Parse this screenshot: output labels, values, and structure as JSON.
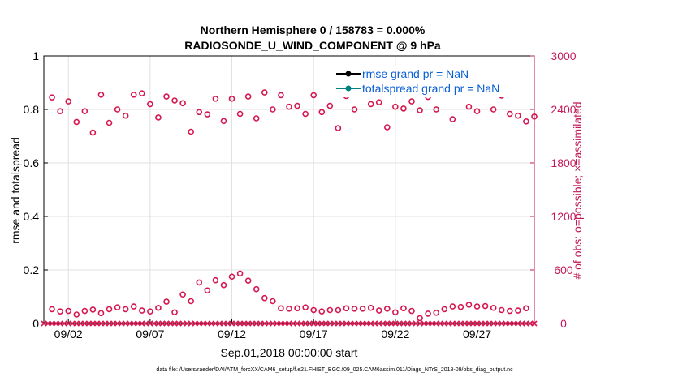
{
  "chart_data": {
    "type": "scatter",
    "title": "Northern Hemisphere 0 / 158783 = 0.000%",
    "subtitle": "RADIOSONDE_U_WIND_COMPONENT @ 9 hPa",
    "xlabel": "Sep.01,2018 00:00:00 start",
    "ylabel": "rmse and totalspread",
    "ylabel_right": "# of obs: o=possible; ×=assimilated",
    "footer": "data file: /Users/raeder/DAI/ATM_forcXX/CAM6_setup/f.e21.FHIST_BGC.f09_025.CAM6assim.011/Diags_NTrS_2018-09/obs_diag_output.nc",
    "xlim": [
      0.5,
      30.5
    ],
    "ylim": [
      0,
      1
    ],
    "ylim_right": [
      0,
      3000
    ],
    "x_ticks": [
      {
        "x": 2,
        "label": "09/02"
      },
      {
        "x": 7,
        "label": "09/07"
      },
      {
        "x": 12,
        "label": "09/12"
      },
      {
        "x": 17,
        "label": "09/17"
      },
      {
        "x": 22,
        "label": "09/22"
      },
      {
        "x": 27,
        "label": "09/27"
      }
    ],
    "y_ticks_left": [
      "0",
      "0.2",
      "0.4",
      "0.6",
      "0.8",
      "1"
    ],
    "y_ticks_right": [
      "0",
      "600",
      "1200",
      "1800",
      "2400",
      "3000"
    ],
    "grid": true,
    "legend_position": "top-right",
    "colors": {
      "obs_markers": "#d6174f",
      "right_axis": "#c41a5a",
      "rmse": "#000000",
      "totalspread": "#008080",
      "legend_text": "#0a5fd6",
      "grid": "#e0e0e0"
    },
    "series": [
      {
        "name": "rmse grand pr = NaN",
        "values": []
      },
      {
        "name": "totalspread grand pr = NaN",
        "values": []
      }
    ],
    "obs_possible": {
      "x": [
        1,
        1.5,
        2,
        2.5,
        3,
        3.5,
        4,
        4.5,
        5,
        5.5,
        6,
        6.5,
        7,
        7.5,
        8,
        8.5,
        9,
        9.5,
        10,
        10.5,
        11,
        11.5,
        12,
        12.5,
        13,
        13.5,
        14,
        14.5,
        15,
        15.5,
        16,
        16.5,
        17,
        17.5,
        18,
        18.5,
        19,
        19.5,
        20,
        20.5,
        21,
        21.5,
        22,
        22.5,
        23,
        23.5,
        24,
        24.5,
        25,
        25.5,
        26,
        26.5,
        27,
        27.5,
        28,
        28.5,
        29,
        29.5,
        30,
        30.5
      ],
      "values": [
        2535,
        2380,
        2490,
        2260,
        2380,
        2140,
        2565,
        2250,
        2400,
        2330,
        2565,
        2580,
        2460,
        2310,
        2545,
        2500,
        2470,
        2150,
        2370,
        2345,
        2520,
        2270,
        2520,
        2350,
        2545,
        2300,
        2590,
        2400,
        2560,
        2430,
        2440,
        2350,
        2560,
        2370,
        2440,
        2190,
        2550,
        2400,
        2580,
        2460,
        2480,
        2200,
        2430,
        2410,
        2490,
        2390,
        2540,
        2400,
        2710,
        2290,
        2720,
        2430,
        2380,
        2750,
        2400,
        2555,
        2350,
        2330,
        2265,
        2320
      ]
    },
    "obs_daily": {
      "x": [
        1,
        2,
        3,
        4,
        5,
        6,
        7,
        8,
        9,
        10,
        11,
        12,
        13,
        14,
        15,
        16,
        17,
        18,
        19,
        20,
        21,
        22,
        23,
        24,
        25,
        26,
        27,
        28,
        29,
        30
      ],
      "values": [
        160,
        140,
        140,
        115,
        180,
        190,
        135,
        245,
        325,
        460,
        485,
        525,
        480,
        285,
        170,
        170,
        150,
        150,
        170,
        165,
        145,
        125,
        140,
        110,
        160,
        185,
        190,
        175,
        140,
        170
      ]
    },
    "obs_daily_half": {
      "x": [
        1.5,
        2.5,
        3.5,
        4.5,
        5.5,
        6.5,
        7.5,
        8.5,
        9.5,
        10.5,
        11.5,
        12.5,
        13.5,
        14.5,
        15.5,
        16.5,
        17.5,
        18.5,
        19.5,
        20.5,
        21.5,
        22.5,
        23.5,
        24.5,
        25.5,
        26.5,
        27.5,
        28.5,
        29.5
      ],
      "values": [
        135,
        100,
        155,
        160,
        160,
        145,
        175,
        125,
        250,
        370,
        430,
        560,
        385,
        250,
        165,
        180,
        135,
        150,
        165,
        175,
        165,
        170,
        60,
        120,
        190,
        210,
        195,
        150,
        145
      ]
    },
    "obs_assimilated": {
      "x_start": 0.5,
      "x_end": 30.5,
      "step": 0.25,
      "value": 0
    }
  }
}
